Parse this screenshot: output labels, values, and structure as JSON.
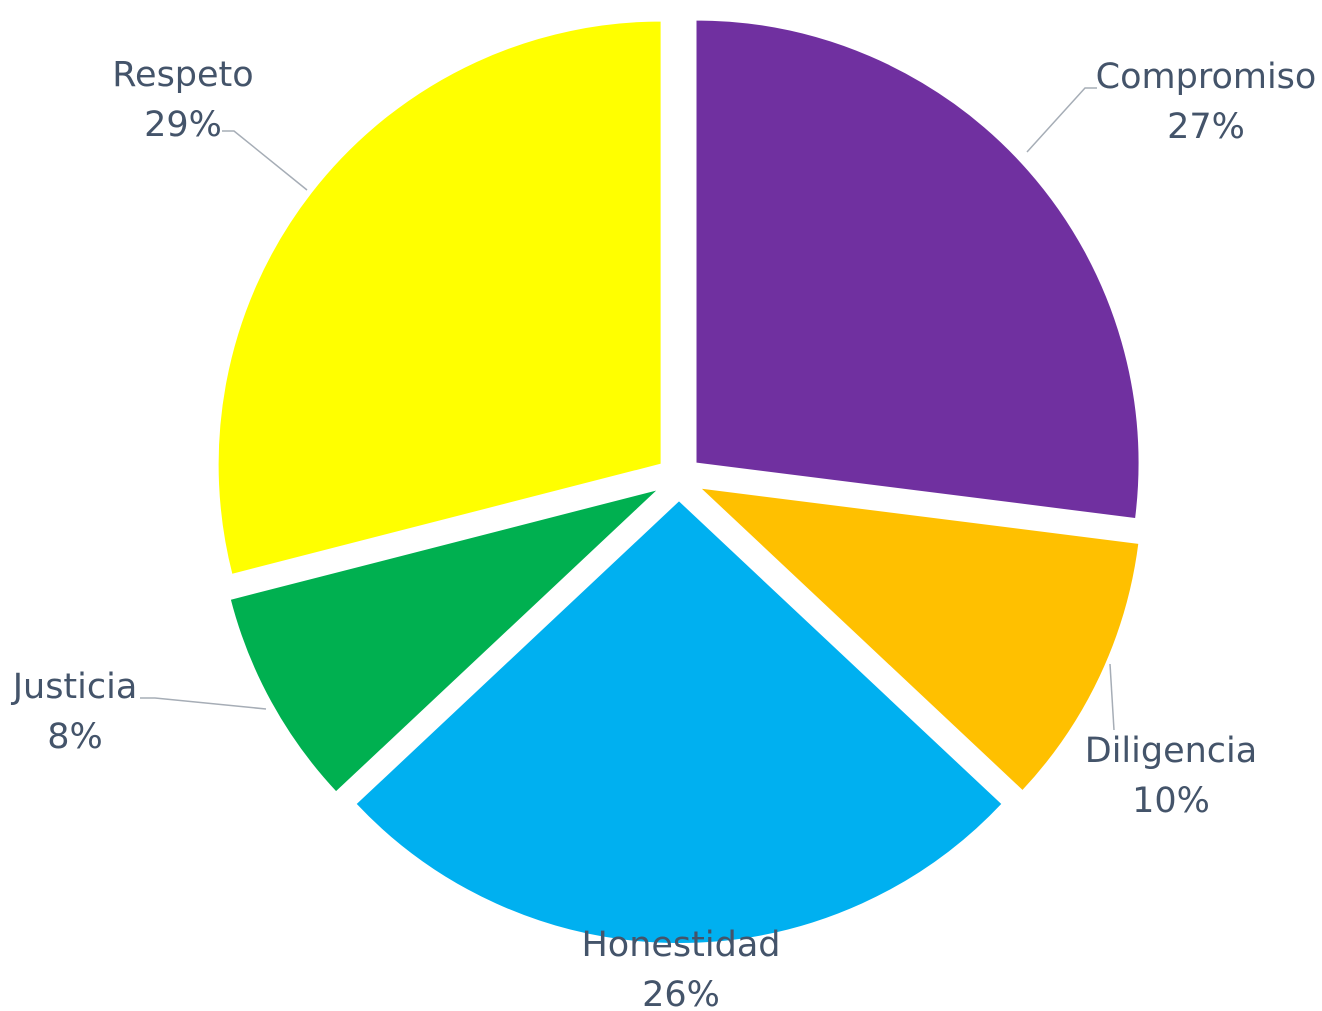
{
  "chart_data": {
    "type": "pie",
    "title": "",
    "slices": [
      {
        "name": "Compromiso",
        "value": 27,
        "label": "27%",
        "color": "#7030a0"
      },
      {
        "name": "Diligencia",
        "value": 10,
        "label": "10%",
        "color": "#ffc000"
      },
      {
        "name": "Honestidad",
        "value": 26,
        "label": "26%",
        "color": "#00b0f0"
      },
      {
        "name": "Justicia",
        "value": 8,
        "label": "8%",
        "color": "#00b050"
      },
      {
        "name": "Respeto",
        "value": 29,
        "label": "29%",
        "color": "#ffff00"
      }
    ],
    "legend": "none",
    "data_labels": "category-and-percent",
    "exploded": true
  }
}
